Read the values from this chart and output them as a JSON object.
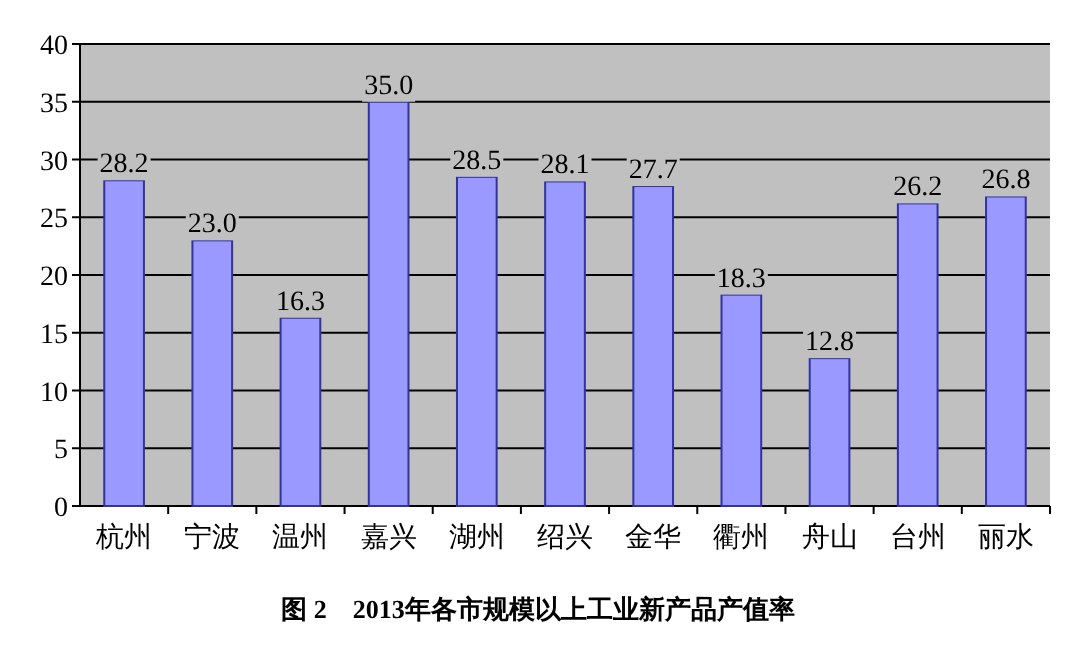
{
  "chart_data": {
    "type": "bar",
    "title": "图 2　2013年各市规模以上工业新产品产值率",
    "categories": [
      "杭州",
      "宁波",
      "温州",
      "嘉兴",
      "湖州",
      "绍兴",
      "金华",
      "衢州",
      "舟山",
      "台州",
      "丽水"
    ],
    "values": [
      28.2,
      23.0,
      16.3,
      35.0,
      28.5,
      28.1,
      27.7,
      18.3,
      12.8,
      26.2,
      26.8
    ],
    "value_labels": [
      "28.2",
      "23.0",
      "16.3",
      "35.0",
      "28.5",
      "28.1",
      "27.7",
      "18.3",
      "12.8",
      "26.2",
      "26.8"
    ],
    "color": "#9999ff",
    "ylim": [
      0,
      40
    ],
    "yticks": [
      0,
      5,
      10,
      15,
      20,
      25,
      30,
      35,
      40
    ],
    "grid": "y"
  }
}
